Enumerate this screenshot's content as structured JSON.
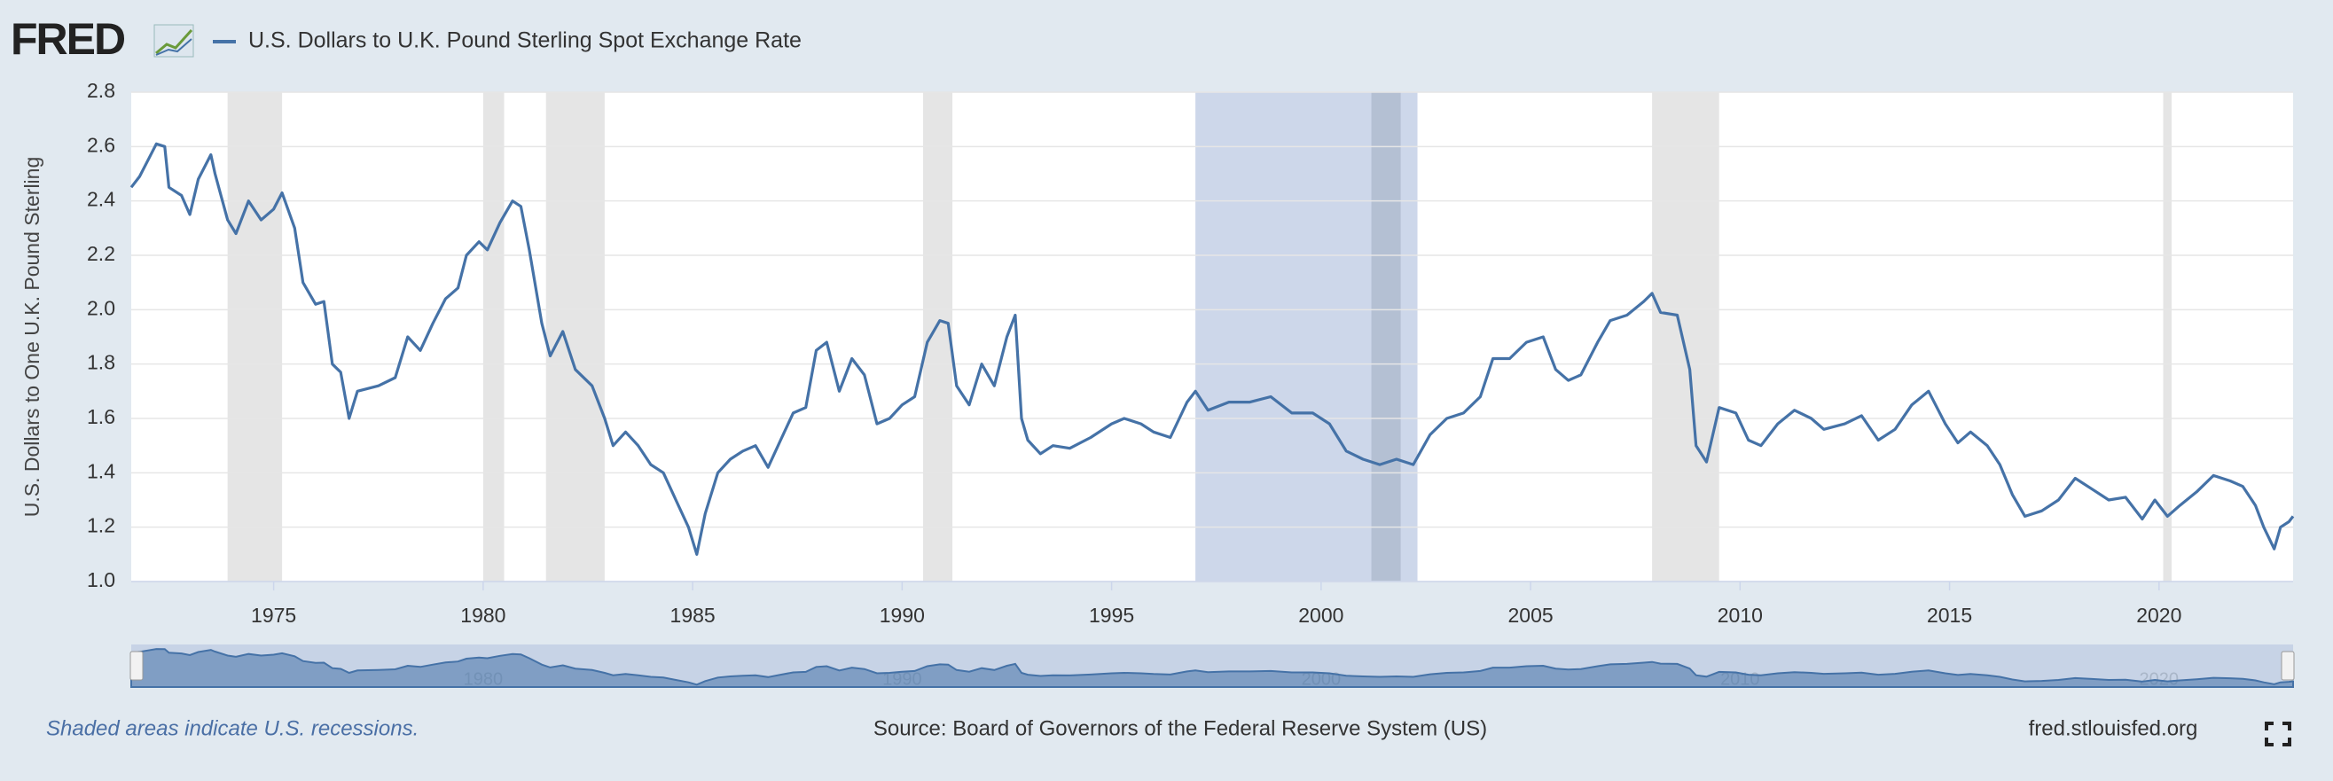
{
  "logo": "FRED",
  "chart_data": {
    "type": "line",
    "y_label": "U.S. Dollars to One U.K. Pound Sterling",
    "note": "Shaded areas indicate U.S. recessions.",
    "source": "Source: Board of Governors of the Federal Reserve System (US)",
    "site": "fred.stlouisfed.org",
    "xlim": [
      1971.6,
      2023.2
    ],
    "xticks": [
      1975,
      1980,
      1985,
      1990,
      1995,
      2000,
      2005,
      2010,
      2015,
      2020
    ],
    "ylim": [
      1.0,
      2.8
    ],
    "yticks": [
      {
        "value": 1.0,
        "label": "1.0"
      },
      1.2,
      1.4,
      1.6,
      1.8,
      {
        "value": 2.0,
        "label": "2.0"
      },
      2.2,
      2.4,
      2.6,
      2.8
    ],
    "grid": true,
    "recessions": [
      [
        1973.9,
        1975.2
      ],
      [
        1980.0,
        1980.5
      ],
      [
        1981.5,
        1982.9
      ],
      [
        1990.5,
        1991.2
      ],
      [
        2001.2,
        2001.9
      ],
      [
        2007.9,
        2009.5
      ],
      [
        2020.1,
        2020.3
      ]
    ],
    "recession_color": "#e5e5e5",
    "highlight": [
      1997.0,
      2002.3
    ],
    "highlight_color": "#c8d3e8",
    "navigator_ticks": [
      1980,
      1990,
      2000,
      2010,
      2020
    ],
    "x": [
      1971.6,
      1971.8,
      1972.0,
      1972.2,
      1972.4,
      1972.5,
      1972.8,
      1973.0,
      1973.2,
      1973.5,
      1973.6,
      1973.9,
      1974.1,
      1974.4,
      1974.7,
      1975.0,
      1975.2,
      1975.5,
      1975.7,
      1976.0,
      1976.2,
      1976.4,
      1976.6,
      1976.8,
      1977.0,
      1977.5,
      1977.9,
      1978.2,
      1978.5,
      1978.8,
      1979.1,
      1979.4,
      1979.6,
      1979.9,
      1980.1,
      1980.4,
      1980.7,
      1980.9,
      1981.1,
      1981.4,
      1981.6,
      1981.9,
      1982.2,
      1982.6,
      1982.9,
      1983.1,
      1983.4,
      1983.7,
      1984.0,
      1984.3,
      1984.6,
      1984.9,
      1985.1,
      1985.3,
      1985.6,
      1985.9,
      1986.2,
      1986.5,
      1986.8,
      1987.1,
      1987.4,
      1987.7,
      1987.95,
      1988.2,
      1988.5,
      1988.8,
      1989.1,
      1989.4,
      1989.7,
      1990.0,
      1990.3,
      1990.6,
      1990.9,
      1991.1,
      1991.3,
      1991.6,
      1991.9,
      1992.2,
      1992.5,
      1992.7,
      1992.85,
      1993.0,
      1993.3,
      1993.6,
      1994.0,
      1994.5,
      1995.0,
      1995.3,
      1995.7,
      1996.0,
      1996.4,
      1996.8,
      1997.0,
      1997.3,
      1997.8,
      1998.3,
      1998.8,
      1999.3,
      1999.8,
      2000.2,
      2000.6,
      2001.0,
      2001.4,
      2001.8,
      2002.2,
      2002.6,
      2003.0,
      2003.4,
      2003.8,
      2004.1,
      2004.5,
      2004.9,
      2005.3,
      2005.6,
      2005.9,
      2006.2,
      2006.6,
      2006.9,
      2007.3,
      2007.7,
      2007.9,
      2008.1,
      2008.5,
      2008.8,
      2008.95,
      2009.2,
      2009.5,
      2009.9,
      2010.2,
      2010.5,
      2010.9,
      2011.3,
      2011.7,
      2012.0,
      2012.5,
      2012.9,
      2013.3,
      2013.7,
      2014.1,
      2014.5,
      2014.9,
      2015.2,
      2015.5,
      2015.9,
      2016.2,
      2016.5,
      2016.8,
      2017.2,
      2017.6,
      2018.0,
      2018.4,
      2018.8,
      2019.2,
      2019.6,
      2019.9,
      2020.2,
      2020.5,
      2020.9,
      2021.3,
      2021.7,
      2022.0,
      2022.3,
      2022.5,
      2022.75,
      2022.9,
      2023.1,
      2023.2
    ],
    "series": [
      {
        "name": "U.S. Dollars to U.K. Pound Sterling Spot Exchange Rate",
        "color": "#4572a7",
        "values": [
          2.45,
          2.49,
          2.55,
          2.61,
          2.6,
          2.45,
          2.42,
          2.35,
          2.48,
          2.57,
          2.5,
          2.33,
          2.28,
          2.4,
          2.33,
          2.37,
          2.43,
          2.3,
          2.1,
          2.02,
          2.03,
          1.8,
          1.77,
          1.6,
          1.7,
          1.72,
          1.75,
          1.9,
          1.85,
          1.95,
          2.04,
          2.08,
          2.2,
          2.25,
          2.22,
          2.32,
          2.4,
          2.38,
          2.22,
          1.95,
          1.83,
          1.92,
          1.78,
          1.72,
          1.6,
          1.5,
          1.55,
          1.5,
          1.43,
          1.4,
          1.3,
          1.2,
          1.1,
          1.25,
          1.4,
          1.45,
          1.48,
          1.5,
          1.42,
          1.52,
          1.62,
          1.64,
          1.85,
          1.88,
          1.7,
          1.82,
          1.76,
          1.58,
          1.6,
          1.65,
          1.68,
          1.88,
          1.96,
          1.95,
          1.72,
          1.65,
          1.8,
          1.72,
          1.9,
          1.98,
          1.6,
          1.52,
          1.47,
          1.5,
          1.49,
          1.53,
          1.58,
          1.6,
          1.58,
          1.55,
          1.53,
          1.66,
          1.7,
          1.63,
          1.66,
          1.66,
          1.68,
          1.62,
          1.62,
          1.58,
          1.48,
          1.45,
          1.43,
          1.45,
          1.43,
          1.54,
          1.6,
          1.62,
          1.68,
          1.82,
          1.82,
          1.88,
          1.9,
          1.78,
          1.74,
          1.76,
          1.88,
          1.96,
          1.98,
          2.03,
          2.06,
          1.99,
          1.98,
          1.78,
          1.5,
          1.44,
          1.64,
          1.62,
          1.52,
          1.5,
          1.58,
          1.63,
          1.6,
          1.56,
          1.58,
          1.61,
          1.52,
          1.56,
          1.65,
          1.7,
          1.58,
          1.51,
          1.55,
          1.5,
          1.43,
          1.32,
          1.24,
          1.26,
          1.3,
          1.38,
          1.34,
          1.3,
          1.31,
          1.23,
          1.3,
          1.24,
          1.28,
          1.33,
          1.39,
          1.37,
          1.35,
          1.28,
          1.2,
          1.12,
          1.2,
          1.22,
          1.24
        ]
      }
    ]
  }
}
